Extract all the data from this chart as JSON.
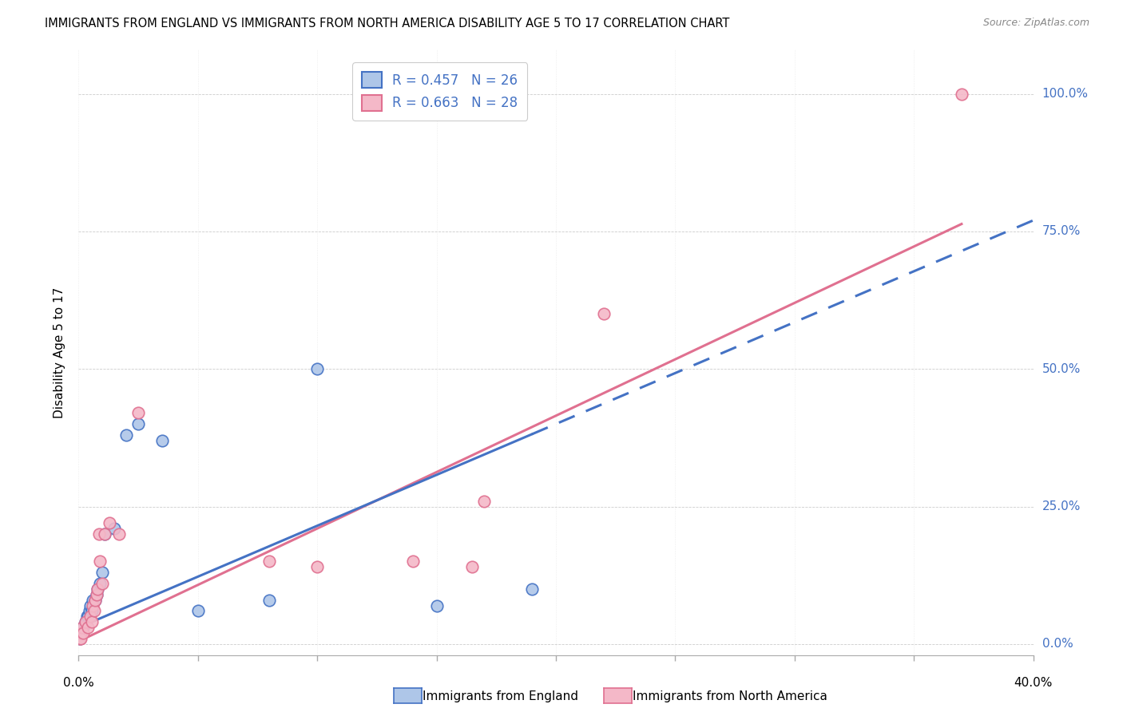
{
  "title": "IMMIGRANTS FROM ENGLAND VS IMMIGRANTS FROM NORTH AMERICA DISABILITY AGE 5 TO 17 CORRELATION CHART",
  "source": "Source: ZipAtlas.com",
  "ylabel": "Disability Age 5 to 17",
  "ytick_labels": [
    "0.0%",
    "25.0%",
    "50.0%",
    "75.0%",
    "100.0%"
  ],
  "ytick_values": [
    0,
    25,
    50,
    75,
    100
  ],
  "xmin": 0,
  "xmax": 40,
  "ymin": -2,
  "ymax": 108,
  "legend_england": "Immigrants from England",
  "legend_north_america": "Immigrants from North America",
  "R_england": 0.457,
  "N_england": 26,
  "R_north_america": 0.663,
  "N_north_america": 28,
  "england_color": "#aec6e8",
  "england_line_color": "#4472c4",
  "north_america_color": "#f4b8c8",
  "north_america_line_color": "#e07090",
  "title_fontsize": 11,
  "source_fontsize": 9,
  "england_x": [
    0.05,
    0.1,
    0.15,
    0.2,
    0.3,
    0.35,
    0.4,
    0.45,
    0.5,
    0.55,
    0.6,
    0.7,
    0.75,
    0.8,
    0.9,
    1.0,
    1.1,
    1.5,
    2.0,
    2.5,
    3.5,
    5.0,
    8.0,
    10.0,
    15.0,
    19.0
  ],
  "england_y": [
    1,
    2,
    3,
    3,
    4,
    5,
    5,
    6,
    7,
    6,
    8,
    8,
    9,
    10,
    11,
    13,
    20,
    21,
    38,
    40,
    37,
    6,
    8,
    50,
    7,
    10
  ],
  "north_america_x": [
    0.05,
    0.08,
    0.1,
    0.15,
    0.2,
    0.3,
    0.4,
    0.5,
    0.55,
    0.6,
    0.65,
    0.7,
    0.75,
    0.8,
    0.85,
    0.9,
    1.0,
    1.1,
    1.3,
    1.7,
    2.5,
    8.0,
    10.0,
    14.0,
    16.5,
    17.0,
    22.0,
    37.0
  ],
  "north_america_y": [
    1,
    2,
    1,
    3,
    2,
    4,
    3,
    5,
    4,
    7,
    6,
    8,
    9,
    10,
    20,
    15,
    11,
    20,
    22,
    20,
    42,
    15,
    14,
    15,
    14,
    26,
    60,
    100
  ],
  "england_solid_end": 19,
  "north_america_solid_end": 37,
  "reg_england_m": 1.75,
  "reg_england_b": 3.5,
  "reg_north_america_m": 2.0,
  "reg_north_america_b": 1.5
}
